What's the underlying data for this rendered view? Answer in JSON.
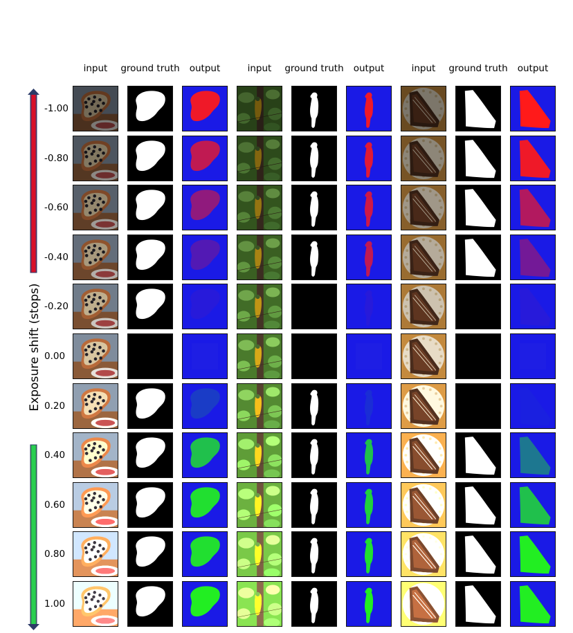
{
  "column_headers": [
    "input",
    "ground truth",
    "output",
    "input",
    "ground truth",
    "output",
    "input",
    "ground truth",
    "output"
  ],
  "y_axis_title": "Exposure shift (stops)",
  "row_labels": [
    "-1.00",
    "-0.80",
    "-0.60",
    "-0.40",
    "-0.20",
    "0.00",
    "0.20",
    "0.40",
    "0.60",
    "0.80",
    "1.00"
  ],
  "exposure_stops": [
    -1.0,
    -0.8,
    -0.6,
    -0.4,
    -0.2,
    0.0,
    0.2,
    0.4,
    0.6,
    0.8,
    1.0
  ],
  "panels": [
    {
      "subject": "pizza",
      "gt_present": [
        true,
        true,
        true,
        true,
        true,
        false,
        true,
        true,
        true,
        true,
        true
      ]
    },
    {
      "subject": "bird",
      "gt_present": [
        true,
        true,
        true,
        true,
        false,
        false,
        true,
        true,
        true,
        true,
        true
      ]
    },
    {
      "subject": "cake",
      "gt_present": [
        true,
        true,
        true,
        true,
        false,
        false,
        false,
        true,
        true,
        true,
        true
      ]
    }
  ],
  "output_intensity": [
    [
      0.95,
      0.8,
      0.62,
      0.35,
      0.1,
      0.0,
      0.25,
      0.85,
      0.95,
      0.95,
      1.0
    ],
    [
      0.95,
      0.9,
      0.85,
      0.8,
      0.1,
      0.0,
      0.15,
      0.85,
      0.9,
      0.95,
      1.0
    ],
    [
      1.0,
      0.95,
      0.75,
      0.5,
      0.1,
      0.0,
      0.05,
      0.55,
      0.85,
      1.0,
      1.0
    ]
  ],
  "colors": {
    "output_background": "#1a1ae6",
    "negative_class": "#ff1a1a",
    "positive_class": "#22ee22",
    "ground_truth_mask": "#ffffff",
    "ground_truth_background": "#000000",
    "arrow_negative": "#c8102e",
    "arrow_positive": "#22c55e",
    "arrow_head": "#2b3a67"
  }
}
